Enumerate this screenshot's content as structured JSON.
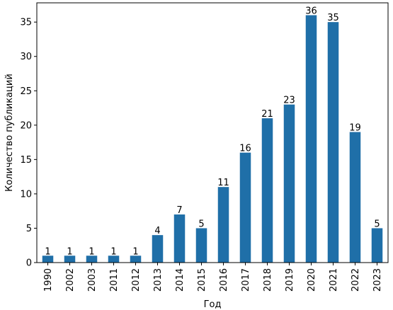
{
  "chart_data": {
    "type": "bar",
    "title": "",
    "xlabel": "Год",
    "ylabel": "Количество публикаций",
    "categories": [
      "1990",
      "2002",
      "2003",
      "2011",
      "2012",
      "2013",
      "2014",
      "2015",
      "2016",
      "2017",
      "2018",
      "2019",
      "2020",
      "2021",
      "2022",
      "2023"
    ],
    "values": [
      1,
      1,
      1,
      1,
      1,
      4,
      7,
      5,
      11,
      16,
      21,
      23,
      36,
      35,
      19,
      5
    ],
    "data_labels": [
      "1",
      "1",
      "1",
      "1",
      "1",
      "4",
      "7",
      "5",
      "11",
      "16",
      "21",
      "23",
      "36",
      "35",
      "19",
      "5"
    ],
    "yticks": [
      0,
      5,
      10,
      15,
      20,
      25,
      30,
      35
    ],
    "ytick_labels": [
      "0",
      "5",
      "10",
      "15",
      "20",
      "25",
      "30",
      "35"
    ],
    "ylim": [
      0,
      37.8
    ],
    "grid": false,
    "legend": "none",
    "bar_color": "#1f6fa8"
  }
}
